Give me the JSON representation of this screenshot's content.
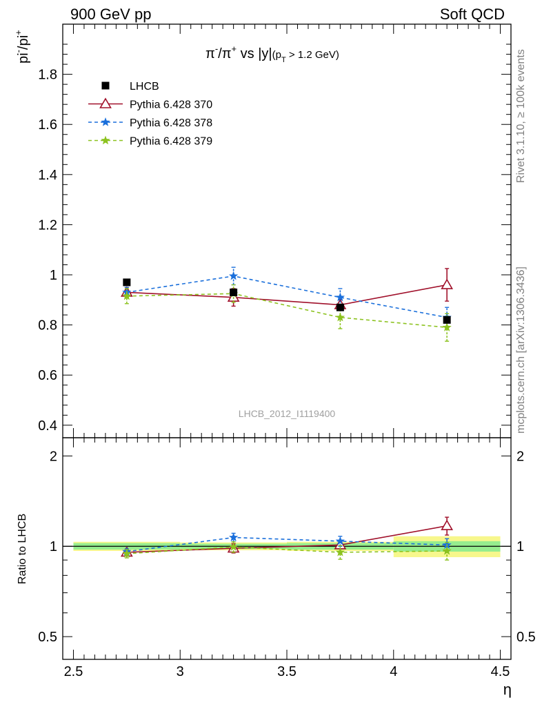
{
  "header": {
    "left": "900 GeV pp",
    "right": "Soft QCD"
  },
  "side_text": {
    "rivet": "Rivet 3.1.10, ≥ 100k events",
    "mcplots": "mcplots.cern.ch [arXiv:1306.3436]"
  },
  "chart_data": [
    {
      "type": "scatter",
      "panel": "main",
      "title_parts": {
        "pi_minus": "π",
        "sup_minus": "-",
        "slash": "/",
        "pi_plus": "π",
        "sup_plus": "+",
        "vs": " vs |y|",
        "pt_open": "(p",
        "pt_sub": "T",
        "pt_close": " > 1.2 GeV)"
      },
      "ylabel_parts": {
        "pi1": "pi",
        "sup1": "-",
        "slash": "/pi",
        "sup2": "+"
      },
      "xlabel": "η",
      "xlim": [
        2.45,
        4.55
      ],
      "ylim": [
        0.35,
        2.0
      ],
      "yticks": [
        "0.4",
        "0.6",
        "0.8",
        "1",
        "1.2",
        "1.4",
        "1.6",
        "1.8"
      ],
      "analysis_label": "LHCB_2012_I1119400",
      "legend_position": "top-left",
      "series": [
        {
          "name": "LHCB",
          "color": "#000000",
          "marker": "square",
          "line": "none",
          "x": [
            2.75,
            3.25,
            3.75,
            4.25
          ],
          "y": [
            0.97,
            0.93,
            0.87,
            0.82
          ],
          "err": [
            0.01,
            0.01,
            0.01,
            0.01
          ]
        },
        {
          "name": "Pythia 6.428 370",
          "color": "#a0102a",
          "marker": "open-triangle",
          "line": "solid",
          "x": [
            2.75,
            3.25,
            3.75,
            4.25
          ],
          "y": [
            0.93,
            0.91,
            0.88,
            0.96
          ],
          "err": [
            0.02,
            0.035,
            0.02,
            0.065
          ]
        },
        {
          "name": "Pythia 6.428 378",
          "color": "#1a6fdb",
          "marker": "star",
          "line": "dashed",
          "x": [
            2.75,
            3.25,
            3.75,
            4.25
          ],
          "y": [
            0.93,
            0.995,
            0.91,
            0.83
          ],
          "err": [
            0.02,
            0.035,
            0.035,
            0.04
          ]
        },
        {
          "name": "Pythia 6.428 379",
          "color": "#8cc21f",
          "marker": "star",
          "line": "dashed",
          "x": [
            2.75,
            3.25,
            3.75,
            4.25
          ],
          "y": [
            0.915,
            0.925,
            0.83,
            0.79
          ],
          "err": [
            0.03,
            0.035,
            0.045,
            0.055
          ]
        }
      ]
    },
    {
      "type": "scatter",
      "panel": "ratio",
      "ylabel": "Ratio to LHCB",
      "xlabel": "η",
      "xlim": [
        2.45,
        4.55
      ],
      "ylim": [
        0.42,
        2.3
      ],
      "log_y": true,
      "xticks": [
        "2.5",
        "3",
        "3.5",
        "4",
        "4.5"
      ],
      "yticks": [
        "0.5",
        "1",
        "2"
      ],
      "reference_bands": {
        "x_edges": [
          2.5,
          3.0,
          3.5,
          4.0,
          4.5
        ],
        "stat": [
          [
            0.975,
            1.025
          ],
          [
            0.98,
            1.02
          ],
          [
            0.975,
            1.025
          ],
          [
            0.96,
            1.04
          ]
        ],
        "total": [
          [
            0.965,
            1.035
          ],
          [
            0.97,
            1.03
          ],
          [
            0.965,
            1.035
          ],
          [
            0.92,
            1.08
          ]
        ]
      },
      "series": [
        {
          "name": "Pythia 6.428 370",
          "color": "#a0102a",
          "marker": "open-triangle",
          "line": "solid",
          "x": [
            2.75,
            3.25,
            3.75,
            4.25
          ],
          "y": [
            0.955,
            0.985,
            1.01,
            1.17
          ],
          "err": [
            0.02,
            0.035,
            0.025,
            0.08
          ]
        },
        {
          "name": "Pythia 6.428 378",
          "color": "#1a6fdb",
          "marker": "star",
          "line": "dashed",
          "x": [
            2.75,
            3.25,
            3.75,
            4.25
          ],
          "y": [
            0.96,
            1.07,
            1.04,
            1.01
          ],
          "err": [
            0.02,
            0.035,
            0.04,
            0.05
          ]
        },
        {
          "name": "Pythia 6.428 379",
          "color": "#8cc21f",
          "marker": "star",
          "line": "dashed",
          "x": [
            2.75,
            3.25,
            3.75,
            4.25
          ],
          "y": [
            0.945,
            0.995,
            0.955,
            0.965
          ],
          "err": [
            0.03,
            0.04,
            0.05,
            0.065
          ]
        }
      ]
    }
  ]
}
